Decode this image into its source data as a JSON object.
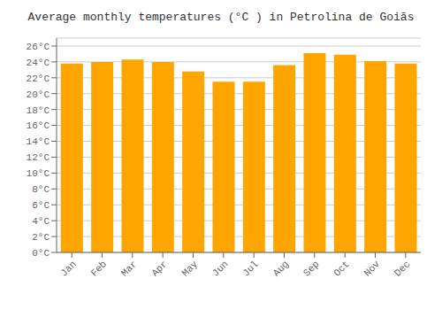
{
  "chart_data": {
    "type": "bar",
    "title": "Average monthly temperatures (°C ) in Petrolina de Goiãs",
    "categories": [
      "Jan",
      "Feb",
      "Mar",
      "Apr",
      "May",
      "Jun",
      "Jul",
      "Aug",
      "Sep",
      "Oct",
      "Nov",
      "Dec"
    ],
    "values": [
      23.8,
      24.0,
      24.3,
      24.0,
      22.8,
      21.5,
      21.5,
      23.6,
      25.1,
      24.9,
      24.1,
      23.8
    ],
    "color": "#FFA500",
    "ylim": [
      0,
      27
    ],
    "yticks": [
      {
        "value": 0,
        "label": "0°C"
      },
      {
        "value": 2,
        "label": "2°C"
      },
      {
        "value": 4,
        "label": "4°C"
      },
      {
        "value": 6,
        "label": "6°C"
      },
      {
        "value": 8,
        "label": "8°C"
      },
      {
        "value": 10,
        "label": "10°C"
      },
      {
        "value": 12,
        "label": "12°C"
      },
      {
        "value": 14,
        "label": "14°C"
      },
      {
        "value": 16,
        "label": "16°C"
      },
      {
        "value": 18,
        "label": "18°C"
      },
      {
        "value": 20,
        "label": "20°C"
      },
      {
        "value": 22,
        "label": "22°C"
      },
      {
        "value": 24,
        "label": "24°C"
      },
      {
        "value": 26,
        "label": "26°C"
      }
    ],
    "grid": true
  }
}
